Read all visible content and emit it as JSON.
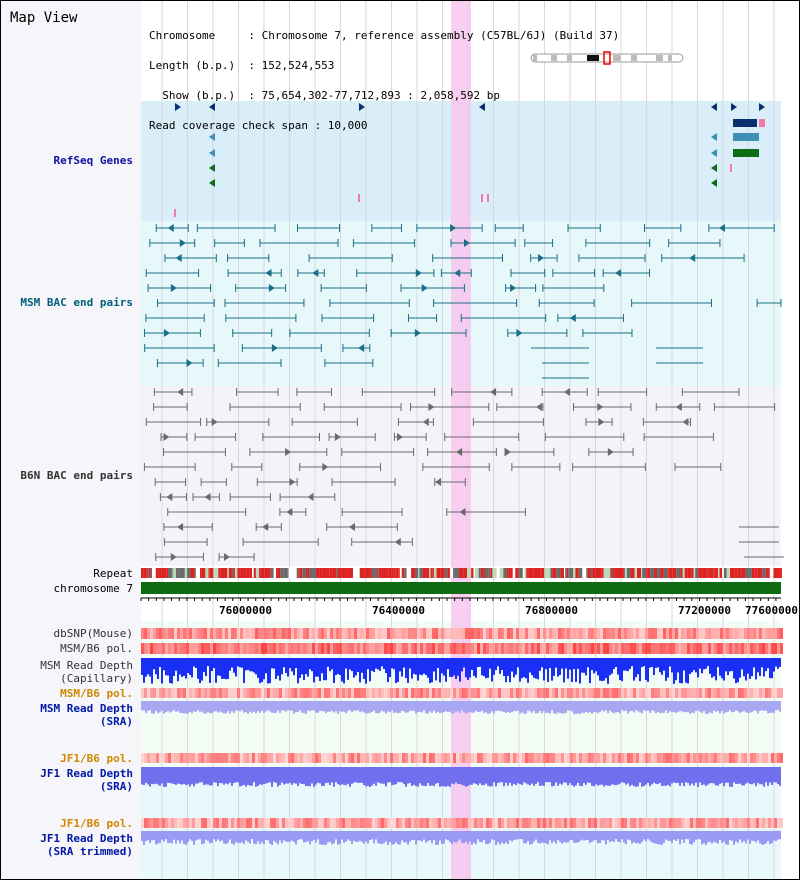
{
  "header": {
    "title": "Map View",
    "info_lines": [
      "Chromosome     : Chromosome 7, reference assembly (C57BL/6J) (Build 37)",
      "Length (b.p.)  : 152,524,553",
      "  Show (b.p.)  : 75,654,302-77,712,893 : 2,058,592 bp",
      "Read coverage check span : 10,000"
    ]
  },
  "tracks": {
    "refseq": "RefSeq Genes",
    "msm_bac": "MSM BAC end pairs",
    "b6n_bac": "B6N BAC end pairs",
    "repeat": "Repeat",
    "chromosome": "chromosome 7",
    "dbsnp": "dbSNP(Mouse)",
    "msm_b6_pol_1": "MSM/B6 pol.",
    "msm_depth_cap": "MSM Read Depth\n(Capillary)",
    "msm_b6_pol_2": "MSM/B6 pol.",
    "msm_depth_sra": "MSM Read Depth\n(SRA)",
    "jf1_b6_pol_1": "JF1/B6 pol.",
    "jf1_depth_sra": "JF1 Read Depth\n(SRA)",
    "jf1_b6_pol_2": "JF1/B6 pol.",
    "jf1_depth_trim": "JF1 Read Depth\n(SRA trimmed)"
  },
  "axis": {
    "ticks": [
      "76000000",
      "76400000",
      "76800000",
      "77200000",
      "77600000"
    ]
  },
  "colors": {
    "highlight": "#f7c6ef",
    "refseq_bg": "#d9eef8",
    "msm_bg": "#e6f8fa",
    "b6n_bg": "#f4f4f8",
    "refseq_navy": "#0a2f6e",
    "refseq_teal": "#3d8fb4",
    "refseq_green": "#0b6e14",
    "refseq_pink": "#f27aa8",
    "msm_line": "#1a6e85",
    "b6n_line": "#6a6a6a",
    "chromosome_bar": "#0f6b12",
    "cap_depth": "#1a2ff5",
    "sra_depth": "#a8a8f2",
    "jf1_depth": "#7070ee",
    "jf1_trim_depth": "#9a9af4",
    "pol_red": "#ee3030"
  },
  "icons": [
    "ideogram-icon",
    "strand-arrow-icon"
  ]
}
